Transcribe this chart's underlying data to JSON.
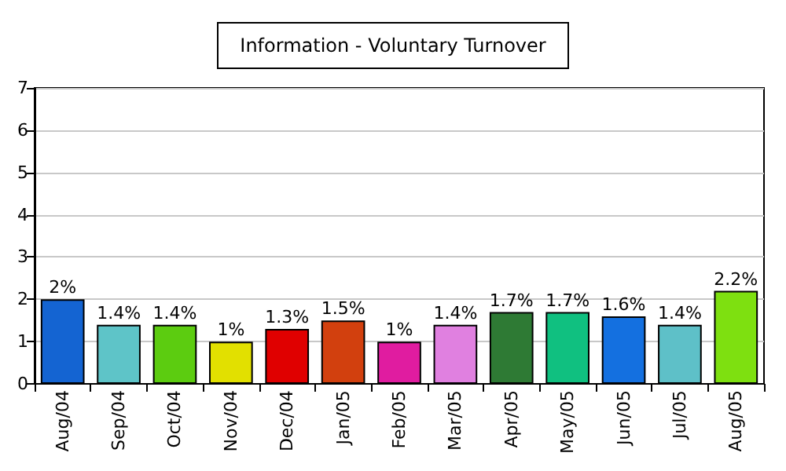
{
  "chart_data": {
    "type": "bar",
    "title": "Information - Voluntary Turnover",
    "categories": [
      "Aug/04",
      "Sep/04",
      "Oct/04",
      "Nov/04",
      "Dec/04",
      "Jan/05",
      "Feb/05",
      "Mar/05",
      "Apr/05",
      "May/05",
      "Jun/05",
      "Jul/05",
      "Aug/05"
    ],
    "values": [
      2,
      1.4,
      1.4,
      1,
      1.3,
      1.5,
      1,
      1.4,
      1.7,
      1.7,
      1.6,
      1.4,
      2.2
    ],
    "value_labels": [
      "2%",
      "1.4%",
      "1.4%",
      "1%",
      "1.3%",
      "1.5%",
      "1%",
      "1.4%",
      "1.7%",
      "1.7%",
      "1.6%",
      "1.4%",
      "2.2%"
    ],
    "colors": [
      "#1464d2",
      "#5ec4c8",
      "#5ccc10",
      "#e2e000",
      "#e00000",
      "#d2400e",
      "#e01ca0",
      "#e080e0",
      "#2e7a34",
      "#10c080",
      "#1470e0",
      "#5ec0c8",
      "#7ee010"
    ],
    "ylim": [
      0,
      7
    ],
    "yticks": [
      0,
      1,
      2,
      3,
      4,
      5,
      6,
      7
    ],
    "grid": "y"
  }
}
